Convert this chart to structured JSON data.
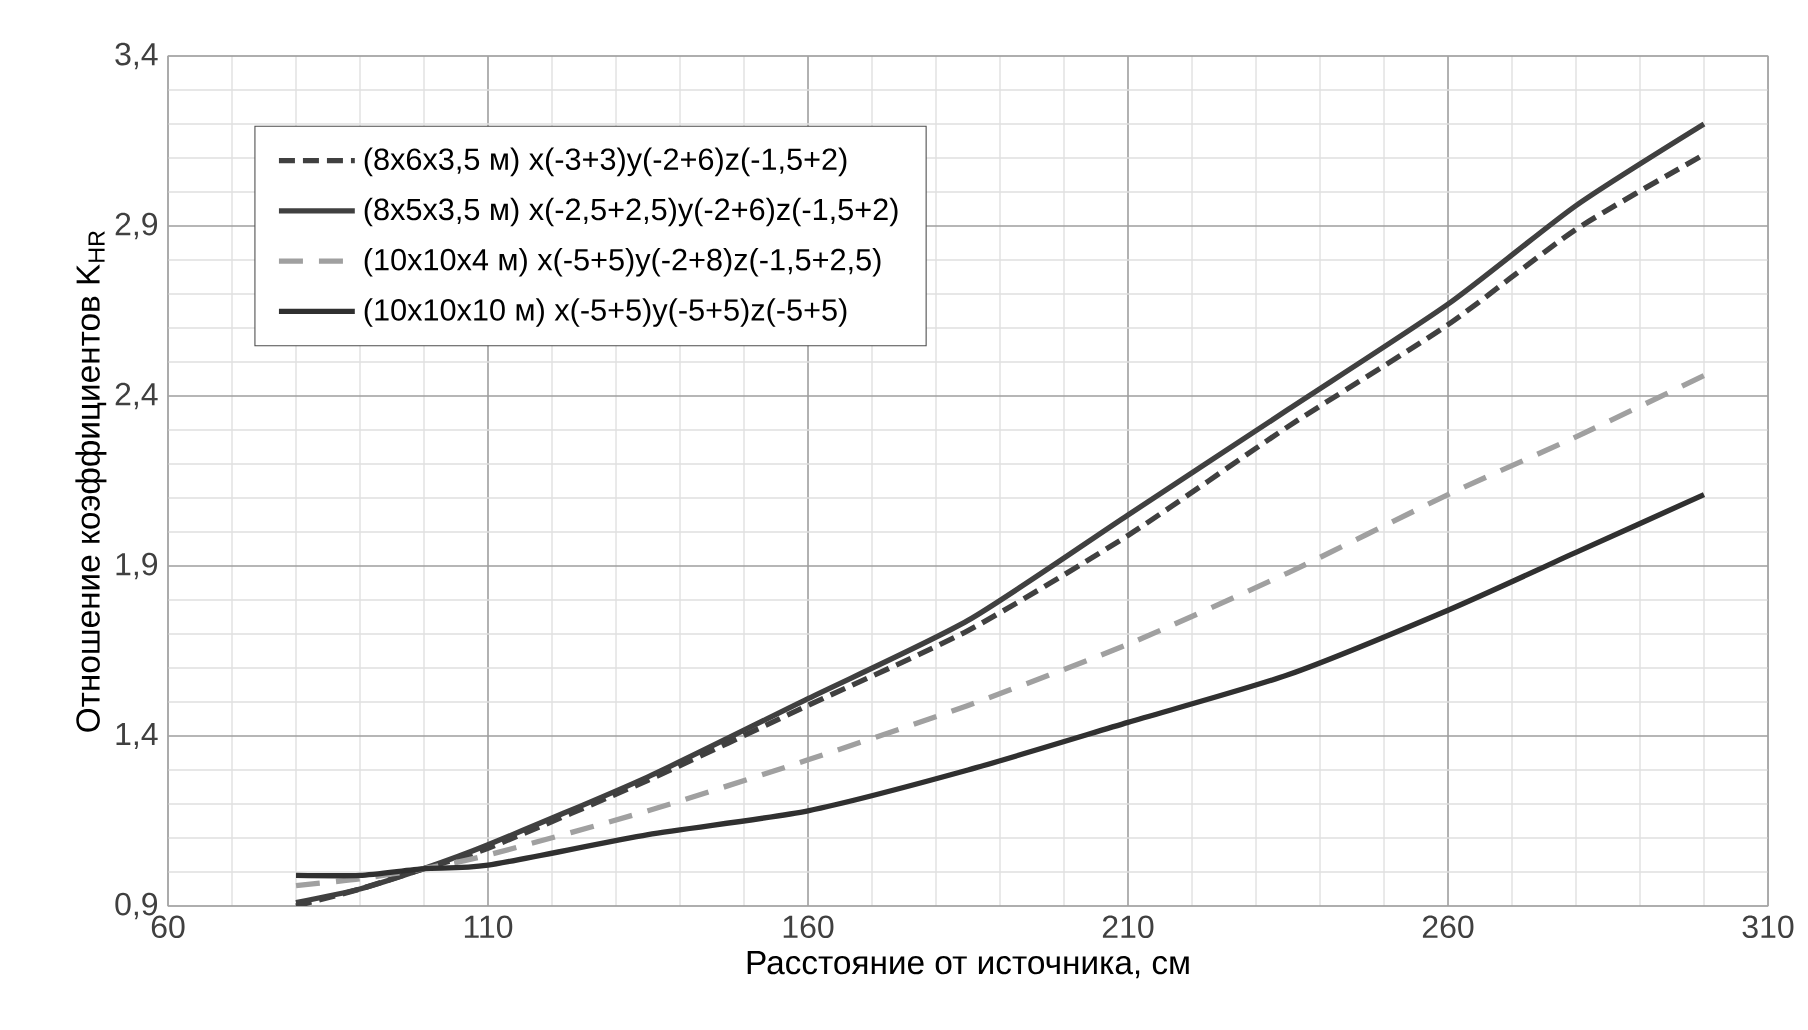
{
  "chart_data": {
    "type": "line",
    "xlabel": "Расстояние от источника, см",
    "ylabel": "Отношение коэффициентов K$_{HR}$",
    "x": [
      80,
      90,
      100,
      110,
      135,
      160,
      185,
      210,
      235,
      260,
      280,
      300
    ],
    "series": [
      {
        "name": "(8x6x3,5 м) x(-3+3)y(-2+6)z(-1,5+2)",
        "color": "#404040",
        "line_style": "dashed",
        "values": [
          0.9,
          0.95,
          1.01,
          1.07,
          1.27,
          1.49,
          1.71,
          1.99,
          2.31,
          2.61,
          2.89,
          3.11
        ]
      },
      {
        "name": "(8x5x3,5 м) x(-2,5+2,5)y(-2+6)z(-1,5+2)",
        "color": "#404040",
        "line_style": "solid",
        "values": [
          0.91,
          0.95,
          1.01,
          1.08,
          1.28,
          1.51,
          1.74,
          2.05,
          2.36,
          2.67,
          2.96,
          3.2
        ]
      },
      {
        "name": "(10x10x4 м) x(-5+5)y(-2+8)z(-1,5+2,5)",
        "color": "#a0a0a0",
        "line_style": "dashed",
        "values": [
          0.96,
          0.98,
          1.01,
          1.05,
          1.18,
          1.33,
          1.49,
          1.67,
          1.88,
          2.11,
          2.28,
          2.46
        ]
      },
      {
        "name": "(10x10x10 м) x(-5+5)y(-5+5)z(-5+5)",
        "color": "#303030",
        "line_style": "solid",
        "values": [
          0.99,
          0.99,
          1.01,
          1.02,
          1.11,
          1.18,
          1.3,
          1.44,
          1.58,
          1.77,
          1.94,
          2.11
        ]
      }
    ],
    "xlim": [
      60,
      310
    ],
    "xticks": [
      60,
      110,
      160,
      210,
      260,
      310
    ],
    "ylim": [
      0.9,
      3.4
    ],
    "yticks": [
      {
        "value": 0.9,
        "label": "0,9"
      },
      {
        "value": 1.4,
        "label": "1,4"
      },
      {
        "value": 1.9,
        "label": "1,9"
      },
      {
        "value": 2.4,
        "label": "2,4"
      },
      {
        "value": 2.9,
        "label": "2,9"
      },
      {
        "value": 3.4,
        "label": "3,4"
      }
    ],
    "grid": true,
    "legend": "top left",
    "marker": "none"
  }
}
